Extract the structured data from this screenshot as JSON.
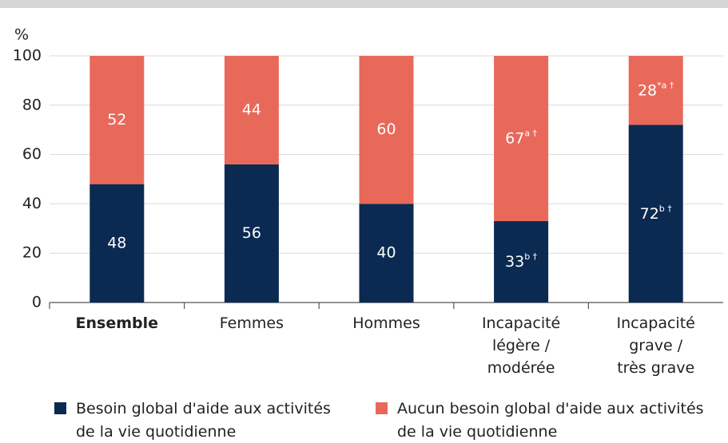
{
  "chart_data": {
    "type": "stacked_bar",
    "y_unit_label": "%",
    "categories": [
      "Ensemble",
      "Femmes",
      "Hommes",
      "Incapacité\nlégère /\nmodérée",
      "Incapacité\ngrave /\ntrès grave"
    ],
    "series": [
      {
        "name": "Besoin global d'aide aux activités\nde la vie quotidienne",
        "color": "#0b2a52",
        "values": [
          48,
          56,
          40,
          33,
          72
        ],
        "value_labels": [
          "48",
          "56",
          "40",
          "33b †",
          "72b †"
        ]
      },
      {
        "name": "Aucun besoin global d'aide aux activités\nde la vie quotidienne",
        "color": "#e8695a",
        "values": [
          52,
          44,
          60,
          67,
          28
        ],
        "value_labels": [
          "52",
          "44",
          "60",
          "67a †",
          "28*a †"
        ]
      }
    ],
    "ylim": [
      0,
      100
    ],
    "yticks": [
      0,
      20,
      40,
      60,
      80,
      100
    ],
    "grid": true
  }
}
